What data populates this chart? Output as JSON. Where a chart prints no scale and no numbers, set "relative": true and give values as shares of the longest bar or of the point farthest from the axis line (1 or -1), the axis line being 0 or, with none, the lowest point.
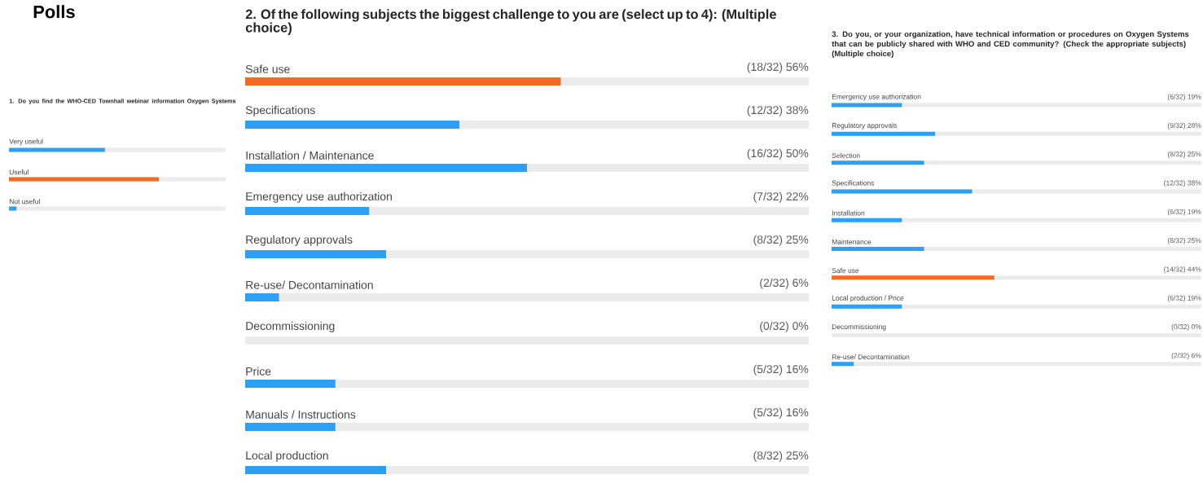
{
  "chart_data": [
    {
      "type": "bar",
      "orientation": "horizontal",
      "relative": true,
      "title": "1. Do you find the WHO-CED Townhall webinar information Oxygen Systems",
      "categories": [
        "Very useful",
        "Useful",
        "Not useful"
      ],
      "values": [
        0.64,
        1,
        0.05
      ],
      "colors": [
        "#2d9ff5",
        "#f26b21",
        "#2d9ff5"
      ],
      "annotations": [
        "Polls"
      ]
    },
    {
      "type": "bar",
      "orientation": "horizontal",
      "title": "2. Of the following subjects the biggest challenge to you are (select up to 4): (Multiple choice)",
      "categories": [
        "Safe use",
        "Specifications",
        "Installation / Maintenance",
        "Emergency use authorization",
        "Regulatory approvals",
        "Re-use/ Decontamination",
        "Decommissioning",
        "Price",
        "Manuals / Instructions",
        "Local production"
      ],
      "values": [
        56,
        38,
        50,
        22,
        25,
        6,
        0,
        16,
        16,
        25
      ],
      "value_labels": [
        "(18/32) 56%",
        "(12/32) 38%",
        "(16/32) 50%",
        "(7/32) 22%",
        "(8/32) 25%",
        "(2/32) 6%",
        "(0/32) 0%",
        "(5/32) 16%",
        "(5/32) 16%",
        "(8/32) 25%"
      ],
      "colors": [
        "#f26b21",
        "#2d9ff5",
        "#2d9ff5",
        "#2d9ff5",
        "#2d9ff5",
        "#2d9ff5",
        "#2d9ff5",
        "#2d9ff5",
        "#2d9ff5",
        "#2d9ff5"
      ],
      "xlim": [
        0,
        100
      ]
    },
    {
      "type": "bar",
      "orientation": "horizontal",
      "title": "3. Do you, or your organization, have technical information or procedures on Oxygen Systems that can be publicly shared with WHO and CED community? (Check the appropriate subjects) (Multiple choice)",
      "categories": [
        "Emergency use authorization",
        "Regulatory approvals",
        "Selection",
        "Specifications",
        "Installation",
        "Maintenance",
        "Safe use",
        "Local production / Price",
        "Decommissioning",
        "Re-use/ Decontamination"
      ],
      "values": [
        19,
        28,
        25,
        38,
        19,
        25,
        44,
        19,
        0,
        6
      ],
      "value_labels": [
        "(6/32) 19%",
        "(9/32) 28%",
        "(8/32) 25%",
        "(12/32) 38%",
        "(6/32) 19%",
        "(8/32) 25%",
        "(14/32) 44%",
        "(6/32) 19%",
        "(0/32) 0%",
        "(2/32) 6%"
      ],
      "colors": [
        "#2d9ff5",
        "#2d9ff5",
        "#2d9ff5",
        "#2d9ff5",
        "#2d9ff5",
        "#2d9ff5",
        "#f26b21",
        "#2d9ff5",
        "#2d9ff5",
        "#2d9ff5"
      ],
      "xlim": [
        0,
        100
      ]
    }
  ]
}
